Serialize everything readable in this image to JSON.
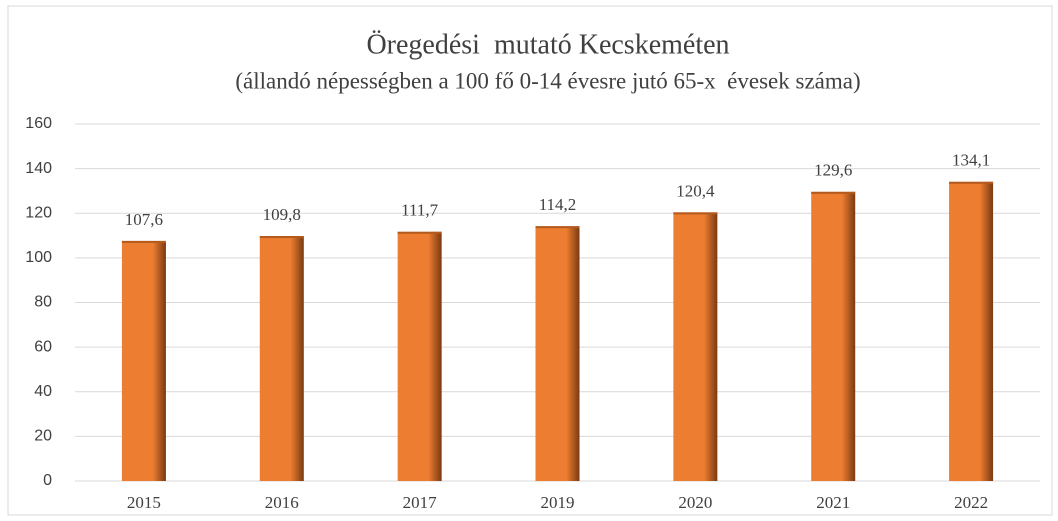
{
  "chart_data": {
    "type": "bar",
    "title": "Öregedési  mutató Kecskeméten",
    "subtitle": "(állandó népességben a 100 fő 0-14 évesre jutó 65-x  évesek száma)",
    "categories": [
      "2015",
      "2016",
      "2017",
      "2019",
      "2020",
      "2021",
      "2022"
    ],
    "values": [
      107.6,
      109.8,
      111.7,
      114.2,
      120.4,
      129.6,
      134.1
    ],
    "value_labels": [
      "107,6",
      "109,8",
      "111,7",
      "114,2",
      "120,4",
      "129,6",
      "134,1"
    ],
    "color": "#ed7d31",
    "ylim": [
      0,
      160
    ],
    "yticks": [
      0,
      20,
      40,
      60,
      80,
      100,
      120,
      140,
      160
    ],
    "grid": true
  }
}
